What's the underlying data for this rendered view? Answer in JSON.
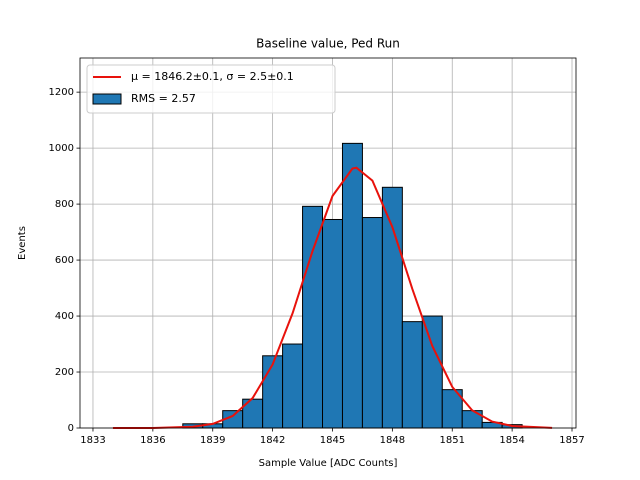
{
  "chart_data": {
    "type": "histogram",
    "title": "Baseline value, Ped Run",
    "x_label": "Sample Value [ADC Counts]",
    "y_label": "Events",
    "bins": [
      1837.5,
      1838.5,
      1839.5,
      1840.5,
      1841.5,
      1842.5,
      1843.5,
      1844.5,
      1845.5,
      1846.5,
      1847.5,
      1848.5,
      1849.5,
      1850.5,
      1851.5,
      1852.5,
      1853.5,
      1854.5
    ],
    "counts": [
      15,
      15,
      62,
      103,
      258,
      300,
      792,
      745,
      1017,
      752,
      860,
      380,
      400,
      137,
      62,
      20,
      12
    ],
    "color": "#1f77b4",
    "hist_label": "RMS = 2.57",
    "fit": {
      "name": "μ = 1846.2±0.1, σ = 2.5±0.1",
      "color": "#e8120c",
      "x": [
        1834,
        1836,
        1838,
        1839,
        1840,
        1841,
        1842,
        1843,
        1844,
        1845,
        1846,
        1846.2,
        1847,
        1848,
        1849,
        1850,
        1851,
        1852,
        1853,
        1854,
        1856
      ],
      "values": [
        0,
        0.2,
        4.3,
        14.7,
        43,
        107,
        227,
        410,
        632,
        829,
        927,
        930,
        884,
        718,
        497,
        293,
        147,
        63,
        23,
        7.2,
        0.4
      ]
    },
    "xlim": [
      1832.35,
      1857.2
    ],
    "ylim": [
      0,
      1322
    ],
    "xticks": [
      1833,
      1836,
      1839,
      1842,
      1845,
      1848,
      1851,
      1854,
      1857
    ],
    "yticks": [
      0,
      200,
      400,
      600,
      800,
      1000,
      1200
    ],
    "grid": true,
    "legend": "upper left"
  }
}
